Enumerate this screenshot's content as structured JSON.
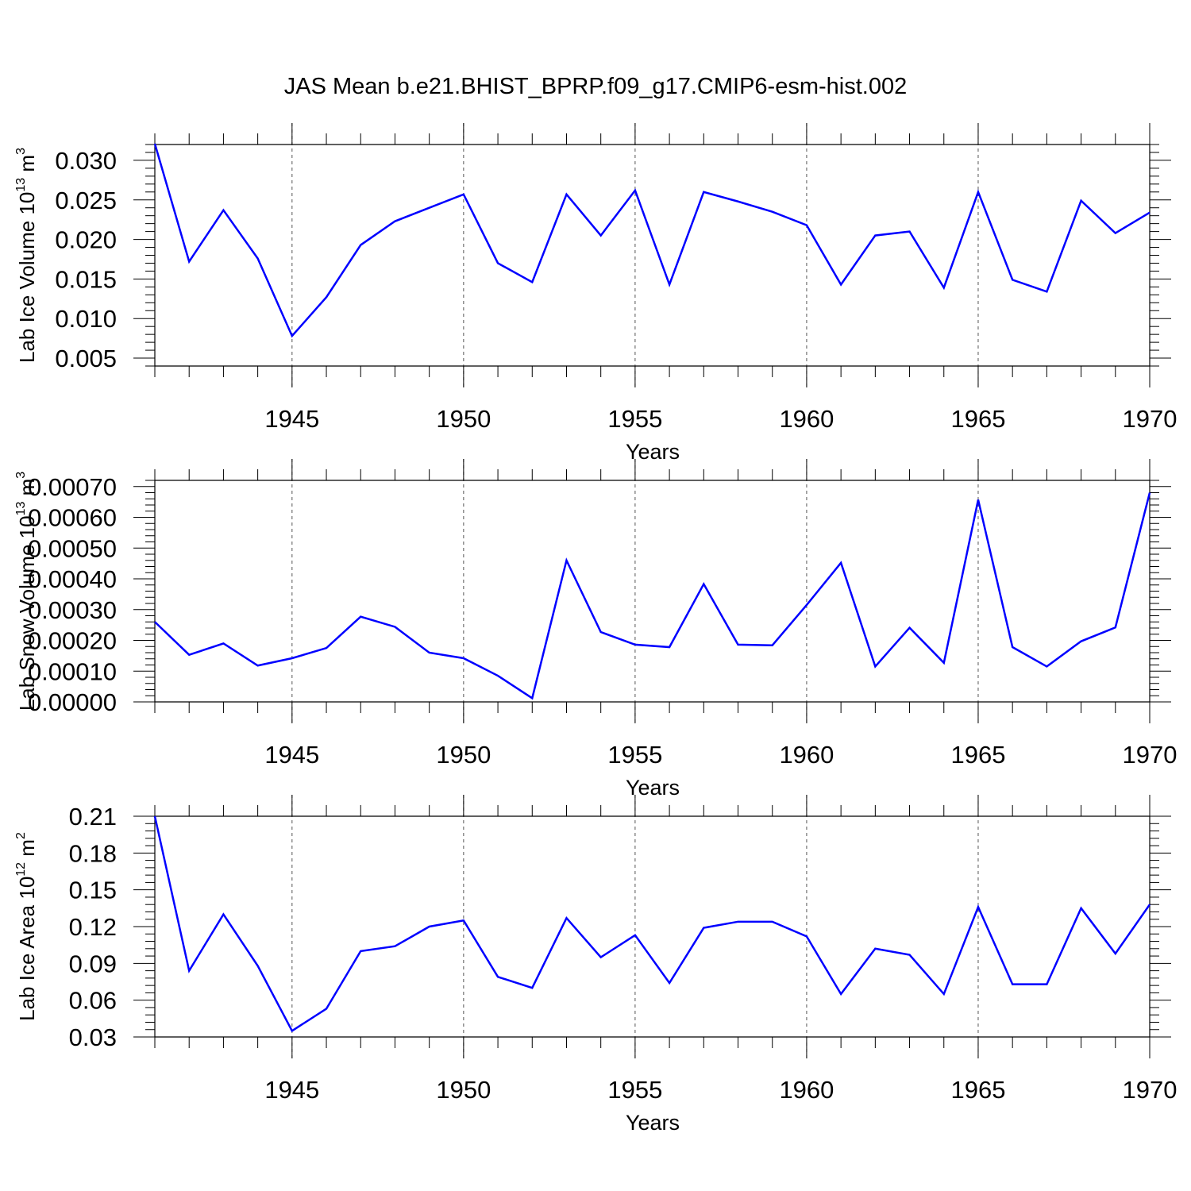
{
  "title": "JAS Mean b.e21.BHIST_BPRP.f09_g17.CMIP6-esm-hist.002",
  "colors": {
    "line": "#0000ff",
    "axis": "#000000",
    "grid": "#555555",
    "background": "#ffffff"
  },
  "chart_data": [
    {
      "type": "line",
      "title": "JAS Mean b.e21.BHIST_BPRP.f09_g17.CMIP6-esm-hist.002",
      "xlabel": "Years",
      "ylabel": {
        "base": "Lab Ice Volume 10",
        "exp1": "13",
        "unit": " m",
        "exp2": "3"
      },
      "xlim": [
        1941,
        1970
      ],
      "ylim": [
        0.004,
        0.032
      ],
      "xticks": [
        1945,
        1950,
        1955,
        1960,
        1965,
        1970
      ],
      "xtick_labels": [
        "1945",
        "1950",
        "1955",
        "1960",
        "1965",
        "1970"
      ],
      "yticks": [
        0.005,
        0.01,
        0.015,
        0.02,
        0.025,
        0.03
      ],
      "ytick_labels": [
        "0.005",
        "0.010",
        "0.015",
        "0.020",
        "0.025",
        "0.030"
      ],
      "grid": "dashed vertical at major x ticks",
      "series": [
        {
          "name": "Lab Ice Volume",
          "x": [
            1941,
            1942,
            1943,
            1944,
            1945,
            1946,
            1947,
            1948,
            1949,
            1950,
            1951,
            1952,
            1953,
            1954,
            1955,
            1956,
            1957,
            1958,
            1959,
            1960,
            1961,
            1962,
            1963,
            1964,
            1965,
            1966,
            1967,
            1968,
            1969,
            1970
          ],
          "values": [
            0.0321,
            0.0172,
            0.0237,
            0.0176,
            0.0078,
            0.0127,
            0.0193,
            0.0223,
            0.024,
            0.0257,
            0.017,
            0.0146,
            0.0257,
            0.0205,
            0.0262,
            0.0143,
            0.026,
            0.0248,
            0.0235,
            0.0218,
            0.0143,
            0.0205,
            0.021,
            0.0139,
            0.026,
            0.0149,
            0.0134,
            0.0249,
            0.0208,
            0.0234
          ]
        }
      ]
    },
    {
      "type": "line",
      "xlabel": "Years",
      "ylabel": {
        "base": "Lab Snow Volume 10",
        "exp1": "13",
        "unit": " m",
        "exp2": "3"
      },
      "xlim": [
        1941,
        1970
      ],
      "ylim": [
        0,
        0.00072
      ],
      "xticks": [
        1945,
        1950,
        1955,
        1960,
        1965,
        1970
      ],
      "xtick_labels": [
        "1945",
        "1950",
        "1955",
        "1960",
        "1965",
        "1970"
      ],
      "yticks": [
        0,
        0.0001,
        0.0002,
        0.0003,
        0.0004,
        0.0005,
        0.0006,
        0.0007
      ],
      "ytick_labels": [
        "0.00000",
        "0.00010",
        "0.00020",
        "0.00030",
        "0.00040",
        "0.00050",
        "0.00060",
        "0.00070"
      ],
      "grid": "dashed vertical at major x ticks",
      "series": [
        {
          "name": "Lab Snow Volume",
          "x": [
            1941,
            1942,
            1943,
            1944,
            1945,
            1946,
            1947,
            1948,
            1949,
            1950,
            1951,
            1952,
            1953,
            1954,
            1955,
            1956,
            1957,
            1958,
            1959,
            1960,
            1961,
            1962,
            1963,
            1964,
            1965,
            1966,
            1967,
            1968,
            1969,
            1970
          ],
          "values": [
            0.00026,
            0.000153,
            0.00019,
            0.000118,
            0.000142,
            0.000175,
            0.000277,
            0.000244,
            0.00016,
            0.000142,
            8.5e-05,
            1.2e-05,
            0.00046,
            0.000227,
            0.000186,
            0.000178,
            0.000383,
            0.000186,
            0.000184,
            0.000315,
            0.000452,
            0.000115,
            0.000241,
            0.000127,
            0.000657,
            0.000178,
            0.000115,
            0.000197,
            0.000242,
            0.00068
          ]
        }
      ]
    },
    {
      "type": "line",
      "xlabel": "Years",
      "ylabel": {
        "base": "Lab Ice Area 10",
        "exp1": "12",
        "unit": " m",
        "exp2": "2"
      },
      "xlim": [
        1941,
        1970
      ],
      "ylim": [
        0.03,
        0.21
      ],
      "xticks": [
        1945,
        1950,
        1955,
        1960,
        1965,
        1970
      ],
      "xtick_labels": [
        "1945",
        "1950",
        "1955",
        "1960",
        "1965",
        "1970"
      ],
      "yticks": [
        0.03,
        0.06,
        0.09,
        0.12,
        0.15,
        0.18,
        0.21
      ],
      "ytick_labels": [
        "0.03",
        "0.06",
        "0.09",
        "0.12",
        "0.15",
        "0.18",
        "0.21"
      ],
      "grid": "dashed vertical at major x ticks",
      "series": [
        {
          "name": "Lab Ice Area",
          "x": [
            1941,
            1942,
            1943,
            1944,
            1945,
            1946,
            1947,
            1948,
            1949,
            1950,
            1951,
            1952,
            1953,
            1954,
            1955,
            1956,
            1957,
            1958,
            1959,
            1960,
            1961,
            1962,
            1963,
            1964,
            1965,
            1966,
            1967,
            1968,
            1969,
            1970
          ],
          "values": [
            0.21,
            0.084,
            0.13,
            0.088,
            0.035,
            0.053,
            0.1,
            0.104,
            0.12,
            0.125,
            0.079,
            0.07,
            0.127,
            0.095,
            0.113,
            0.074,
            0.119,
            0.124,
            0.124,
            0.112,
            0.065,
            0.102,
            0.097,
            0.065,
            0.136,
            0.073,
            0.073,
            0.135,
            0.098,
            0.138
          ]
        }
      ]
    }
  ]
}
